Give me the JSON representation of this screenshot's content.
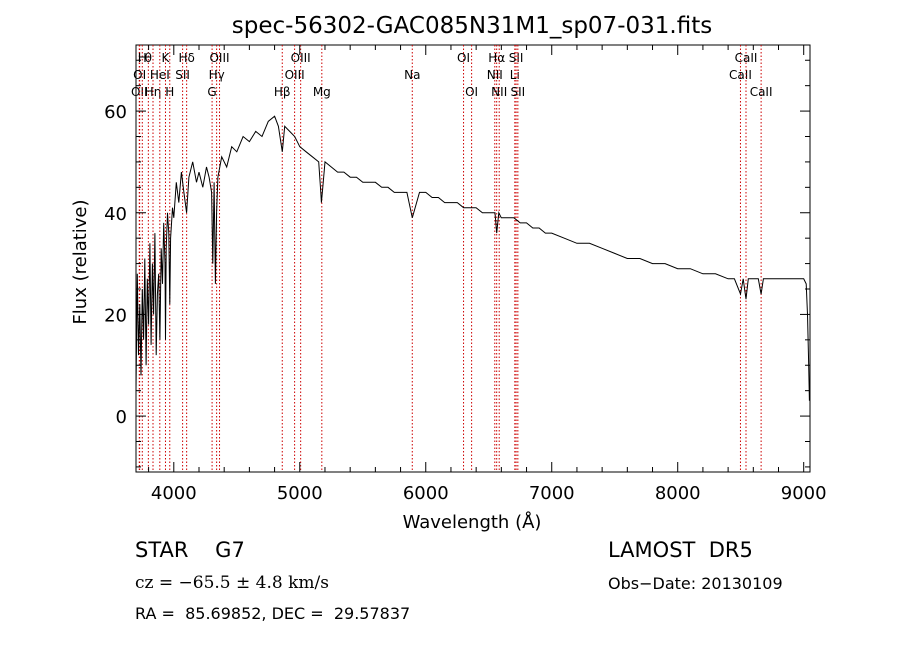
{
  "chart_data": {
    "type": "line",
    "title": "spec-56302-GAC085N31M1_sp07-031.fits",
    "xlabel": "Wavelength (Å)",
    "ylabel": "Flux (relative)",
    "xlim": [
      3700,
      9050
    ],
    "ylim": [
      -11,
      73
    ],
    "xticks": [
      4000,
      5000,
      6000,
      7000,
      8000,
      9000
    ],
    "yticks": [
      0,
      20,
      40,
      60
    ],
    "line_color": "#000000",
    "marker_color": "#cc0000",
    "series": [
      {
        "x": [
          3700,
          3710,
          3720,
          3730,
          3740,
          3750,
          3760,
          3770,
          3780,
          3790,
          3800,
          3810,
          3820,
          3830,
          3840,
          3850,
          3860,
          3870,
          3880,
          3890,
          3900,
          3910,
          3920,
          3930,
          3934,
          3940,
          3950,
          3960,
          3968,
          3975,
          3990,
          4000,
          4020,
          4040,
          4060,
          4080,
          4102,
          4120,
          4150,
          4180,
          4200,
          4230,
          4260,
          4280,
          4300,
          4310,
          4320,
          4330,
          4340,
          4350,
          4380,
          4420,
          4460,
          4500,
          4550,
          4600,
          4650,
          4700,
          4750,
          4800,
          4830,
          4861,
          4880,
          4920,
          4960,
          5000,
          5050,
          5100,
          5150,
          5167,
          5172,
          5183,
          5200,
          5250,
          5300,
          5350,
          5400,
          5450,
          5500,
          5550,
          5600,
          5650,
          5700,
          5750,
          5800,
          5850,
          5893,
          5950,
          6000,
          6050,
          6100,
          6150,
          6200,
          6250,
          6300,
          6350,
          6400,
          6450,
          6500,
          6550,
          6563,
          6580,
          6600,
          6650,
          6700,
          6750,
          6800,
          6850,
          6900,
          6950,
          7000,
          7100,
          7200,
          7300,
          7400,
          7500,
          7600,
          7700,
          7800,
          7900,
          8000,
          8100,
          8200,
          8300,
          8400,
          8450,
          8498,
          8520,
          8542,
          8560,
          8600,
          8640,
          8662,
          8680,
          8700,
          8750,
          8800,
          8850,
          8900,
          8950,
          9000,
          9020,
          9030,
          9040,
          9045
        ],
        "values": [
          5,
          28,
          12,
          22,
          8,
          25,
          15,
          31,
          10,
          27,
          18,
          34,
          14,
          30,
          20,
          36,
          12,
          24,
          28,
          15,
          33,
          26,
          38,
          30,
          15,
          33,
          40,
          36,
          22,
          35,
          41,
          39,
          46,
          42,
          48,
          44,
          40,
          47,
          50,
          46,
          48,
          45,
          49,
          47,
          44,
          30,
          46,
          26,
          40,
          47,
          51,
          49,
          53,
          52,
          55,
          54,
          56,
          55,
          58,
          59,
          57,
          52,
          57,
          56,
          55,
          53,
          52,
          51,
          50,
          44,
          42,
          45,
          50,
          49,
          48,
          48,
          47,
          47,
          46,
          46,
          46,
          45,
          45,
          44,
          44,
          44,
          39,
          44,
          44,
          43,
          43,
          42,
          42,
          42,
          41,
          41,
          41,
          40,
          40,
          40,
          36,
          40,
          39,
          39,
          39,
          38,
          38,
          37,
          37,
          36,
          36,
          35,
          34,
          34,
          33,
          32,
          31,
          31,
          30,
          30,
          29,
          29,
          28,
          28,
          27,
          27,
          24,
          27,
          23,
          27,
          27,
          27,
          24,
          27,
          27,
          27,
          27,
          27,
          27,
          27,
          27,
          26,
          20,
          10,
          3
        ]
      }
    ],
    "line_markers": [
      {
        "x": 3726,
        "label": "OII",
        "row": 3
      },
      {
        "x": 3729,
        "label": "OI",
        "row": 2
      },
      {
        "x": 3750,
        "label": "H",
        "row": 1
      },
      {
        "x": 3798,
        "label": "θ",
        "row": 1
      },
      {
        "x": 3835,
        "label": "Hη",
        "row": 3
      },
      {
        "x": 3889,
        "label": "HeI",
        "row": 2
      },
      {
        "x": 3934,
        "label": "K",
        "row": 1
      },
      {
        "x": 3968,
        "label": "H",
        "row": 3
      },
      {
        "x": 4070,
        "label": "SII",
        "row": 2
      },
      {
        "x": 4102,
        "label": "Hδ",
        "row": 1
      },
      {
        "x": 4304,
        "label": "G",
        "row": 3
      },
      {
        "x": 4340,
        "label": "Hγ",
        "row": 2
      },
      {
        "x": 4363,
        "label": "OIII",
        "row": 1
      },
      {
        "x": 4861,
        "label": "Hβ",
        "row": 3
      },
      {
        "x": 4959,
        "label": "OIII",
        "row": 2
      },
      {
        "x": 5007,
        "label": "OIII",
        "row": 1
      },
      {
        "x": 5175,
        "label": "Mg",
        "row": 3
      },
      {
        "x": 5893,
        "label": "Na",
        "row": 2
      },
      {
        "x": 6300,
        "label": "OI",
        "row": 1
      },
      {
        "x": 6364,
        "label": "OI",
        "row": 3
      },
      {
        "x": 6548,
        "label": "NII",
        "row": 2
      },
      {
        "x": 6563,
        "label": "Hα",
        "row": 1
      },
      {
        "x": 6583,
        "label": "NII",
        "row": 3
      },
      {
        "x": 6707,
        "label": "Li",
        "row": 2
      },
      {
        "x": 6717,
        "label": "SII",
        "row": 1
      },
      {
        "x": 6731,
        "label": "SII",
        "row": 3
      },
      {
        "x": 8498,
        "label": "CaII",
        "row": 2
      },
      {
        "x": 8542,
        "label": "CaII",
        "row": 1
      },
      {
        "x": 8662,
        "label": "CaII",
        "row": 3
      }
    ]
  },
  "info": {
    "class_text": "STAR    G7",
    "survey_text": "LAMOST  DR5",
    "cz_text": "cz = −65.5 ± 4.8 km/s",
    "obs_text": "Obs−Date: 20130109",
    "coord_text": "RA =  85.69852, DEC =  29.57837"
  }
}
